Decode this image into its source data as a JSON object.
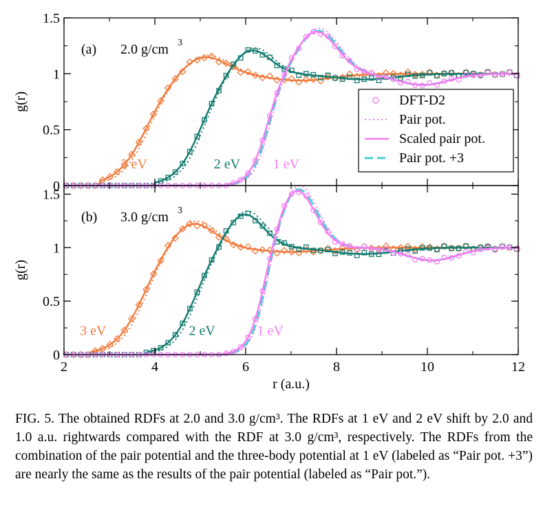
{
  "colors": {
    "one_ev": "#f27df2",
    "two_ev": "#127a6e",
    "three_ev": "#f07a3c",
    "pair3": "#47cfd2",
    "frame": "#000000"
  },
  "legend": {
    "dft": "DFT-D2",
    "pair": "Pair pot.",
    "scaled": "Scaled pair pot.",
    "pair3": "Pair pot. +3"
  },
  "caption": {
    "text": "FIG. 5.  The obtained RDFs at 2.0 and 3.0 g/cm³. The RDFs at 1 eV and 2 eV shift by 2.0 and 1.0 a.u. rightwards compared with the RDF at 3.0 g/cm³, respectively. The RDFs from the combination of the pair potential and the three-body potential at 1 eV (labeled as “Pair pot. +3”) are nearly the same as the results of the pair potential (labeled as “Pair pot.”)."
  },
  "chart_data": [
    {
      "type": "line",
      "panel_label": "(a)",
      "density_label": "2.0 g/cm",
      "density_sup": "3",
      "xlabel": "r (a.u.)",
      "ylabel": "g(r)",
      "xlim": [
        2,
        12
      ],
      "ylim": [
        0,
        1.5
      ],
      "xticks": [
        2,
        4,
        6,
        8,
        10,
        12
      ],
      "yticks": [
        0,
        0.5,
        1,
        1.5
      ],
      "ytick_labels": [
        "0",
        "0.5",
        "1",
        "1.5"
      ],
      "legend_position": "right",
      "curve_labels": [
        {
          "text": "3 eV",
          "x": 3.25,
          "y": 0.19,
          "series": "3 eV"
        },
        {
          "text": "2 eV",
          "x": 5.3,
          "y": 0.19,
          "series": "2 eV"
        },
        {
          "text": "1 eV",
          "x": 6.6,
          "y": 0.19,
          "series": "1 eV"
        }
      ],
      "series": [
        {
          "name": "3 eV",
          "color_key": "three_ev",
          "marker": "diamond",
          "onset": 2.8,
          "peak_x": 5.05,
          "peak_h": 0.17,
          "peak_w": 0.7,
          "well_x": 7.2,
          "well_h": 0.06,
          "well_w": 1.0,
          "rise_mid": 3.8,
          "rise_k": 3.1
        },
        {
          "name": "2 eV",
          "color_key": "two_ev",
          "marker": "square",
          "onset": 4.0,
          "peak_x": 6.1,
          "peak_h": 0.23,
          "peak_w": 0.6,
          "well_x": 8.6,
          "well_h": 0.05,
          "well_w": 1.0,
          "rise_mid": 5.0,
          "rise_k": 3.6
        },
        {
          "name": "1 eV",
          "color_key": "one_ev",
          "marker": "circle",
          "onset": 5.6,
          "peak_x": 7.55,
          "peak_h": 0.38,
          "peak_w": 0.65,
          "well_x": 9.9,
          "well_h": 0.1,
          "well_w": 0.8,
          "rise_mid": 6.45,
          "rise_k": 5.2
        }
      ]
    },
    {
      "type": "line",
      "panel_label": "(b)",
      "density_label": "3.0 g/cm",
      "density_sup": "3",
      "xlabel": "r (a.u.)",
      "ylabel": "g(r)",
      "xlim": [
        2,
        12
      ],
      "ylim": [
        0,
        2.0
      ],
      "xticks": [
        2,
        4,
        6,
        8,
        10,
        12
      ],
      "xtick_labels": [
        "2",
        "4",
        "6",
        "8",
        "10",
        "12"
      ],
      "yticks": [
        0,
        0.5,
        1,
        1.5
      ],
      "ytick_labels": [
        "0",
        "0.5",
        "1",
        "1.5"
      ],
      "curve_labels": [
        {
          "text": "3 eV",
          "x": 2.35,
          "y": 0.22,
          "series": "3 eV"
        },
        {
          "text": "2 eV",
          "x": 4.75,
          "y": 0.22,
          "series": "2 eV"
        },
        {
          "text": "1 eV",
          "x": 6.25,
          "y": 0.22,
          "series": "1 eV"
        }
      ],
      "series": [
        {
          "name": "3 eV",
          "color_key": "three_ev",
          "marker": "diamond",
          "onset": 2.6,
          "peak_x": 4.8,
          "peak_h": 0.25,
          "peak_w": 0.7,
          "well_x": 7.0,
          "well_h": 0.04,
          "well_w": 1.0,
          "rise_mid": 3.7,
          "rise_k": 3.3
        },
        {
          "name": "2 eV",
          "color_key": "two_ev",
          "marker": "square",
          "onset": 3.8,
          "peak_x": 5.95,
          "peak_h": 0.33,
          "peak_w": 0.6,
          "well_x": 8.6,
          "well_h": 0.06,
          "well_w": 1.0,
          "rise_mid": 4.85,
          "rise_k": 3.7
        },
        {
          "name": "1 eV",
          "color_key": "one_ev",
          "marker": "circle",
          "onset": 5.5,
          "peak_x": 7.1,
          "peak_h": 0.55,
          "peak_w": 0.6,
          "well_x": 10.1,
          "well_h": 0.12,
          "well_w": 0.8,
          "rise_mid": 6.35,
          "rise_k": 5.6
        }
      ]
    }
  ]
}
